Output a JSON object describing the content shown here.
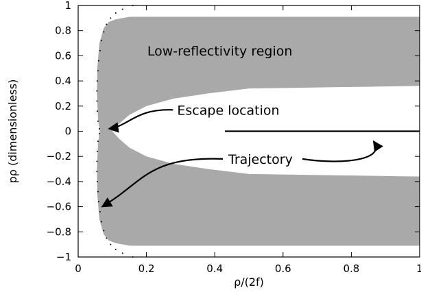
{
  "chart_data": {
    "type": "scatter",
    "title": "",
    "xlabel": "ρ/(2f)",
    "ylabel": "pρ (dimensionless)",
    "xlim": [
      0,
      1
    ],
    "ylim": [
      -1,
      1
    ],
    "x_ticks": [
      {
        "value": 0,
        "label": "0"
      },
      {
        "value": 0.2,
        "label": "0.2"
      },
      {
        "value": 0.4,
        "label": "0.4"
      },
      {
        "value": 0.6,
        "label": "0.6"
      },
      {
        "value": 0.8,
        "label": "0.8"
      },
      {
        "value": 1,
        "label": "1"
      }
    ],
    "y_ticks": [
      {
        "value": 1,
        "label": "1"
      },
      {
        "value": 0.8,
        "label": "0.8"
      },
      {
        "value": 0.6,
        "label": "0.6"
      },
      {
        "value": 0.4,
        "label": "0.4"
      },
      {
        "value": 0.2,
        "label": "0.2"
      },
      {
        "value": 0,
        "label": "0"
      },
      {
        "value": -0.2,
        "label": "−0.2"
      },
      {
        "value": -0.4,
        "label": "−0.4"
      },
      {
        "value": -0.6,
        "label": "−0.6"
      },
      {
        "value": -0.8,
        "label": "−0.8"
      },
      {
        "value": -1,
        "label": "−1"
      }
    ],
    "grid": false,
    "regions": {
      "fill_color": "#a9a9a9",
      "upper_band": {
        "outer": [
          [
            0.063,
            0.0
          ],
          [
            0.058,
            0.1
          ],
          [
            0.055,
            0.3
          ],
          [
            0.056,
            0.5
          ],
          [
            0.062,
            0.7
          ],
          [
            0.075,
            0.82
          ],
          [
            0.09,
            0.87
          ],
          [
            0.11,
            0.89
          ],
          [
            0.15,
            0.91
          ],
          [
            1.0,
            0.91
          ]
        ],
        "inner": [
          [
            0.1,
            0.0
          ],
          [
            0.12,
            0.06
          ],
          [
            0.15,
            0.13
          ],
          [
            0.2,
            0.2
          ],
          [
            0.28,
            0.26
          ],
          [
            0.38,
            0.3
          ],
          [
            0.5,
            0.34
          ],
          [
            1.0,
            0.36
          ]
        ]
      },
      "lower_band": {
        "outer": [
          [
            0.063,
            0.0
          ],
          [
            0.058,
            -0.1
          ],
          [
            0.055,
            -0.3
          ],
          [
            0.056,
            -0.5
          ],
          [
            0.062,
            -0.7
          ],
          [
            0.075,
            -0.82
          ],
          [
            0.09,
            -0.87
          ],
          [
            0.11,
            -0.89
          ],
          [
            0.15,
            -0.91
          ],
          [
            1.0,
            -0.91
          ]
        ],
        "inner": [
          [
            0.1,
            0.0
          ],
          [
            0.12,
            -0.06
          ],
          [
            0.15,
            -0.13
          ],
          [
            0.2,
            -0.2
          ],
          [
            0.28,
            -0.26
          ],
          [
            0.38,
            -0.3
          ],
          [
            0.5,
            -0.34
          ],
          [
            1.0,
            -0.36
          ]
        ]
      }
    },
    "trajectory": {
      "color": "#000000",
      "points": [
        [
          0.43,
          0.0
        ],
        [
          1.0,
          0.0
        ]
      ]
    },
    "boundary_dots": {
      "upper": [
        [
          0.16,
          1.0
        ],
        [
          0.13,
          0.97
        ],
        [
          0.11,
          0.94
        ],
        [
          0.095,
          0.9
        ],
        [
          0.083,
          0.85
        ],
        [
          0.075,
          0.79
        ],
        [
          0.068,
          0.72
        ],
        [
          0.064,
          0.64
        ],
        [
          0.06,
          0.56
        ],
        [
          0.058,
          0.48
        ],
        [
          0.056,
          0.4
        ],
        [
          0.055,
          0.32
        ],
        [
          0.055,
          0.24
        ],
        [
          0.056,
          0.16
        ],
        [
          0.058,
          0.08
        ],
        [
          0.062,
          0.02
        ]
      ],
      "lower": [
        [
          0.16,
          -1.0
        ],
        [
          0.13,
          -0.97
        ],
        [
          0.11,
          -0.94
        ],
        [
          0.095,
          -0.9
        ],
        [
          0.083,
          -0.85
        ],
        [
          0.075,
          -0.79
        ],
        [
          0.068,
          -0.72
        ],
        [
          0.064,
          -0.64
        ],
        [
          0.06,
          -0.56
        ],
        [
          0.058,
          -0.48
        ],
        [
          0.056,
          -0.4
        ],
        [
          0.055,
          -0.32
        ],
        [
          0.055,
          -0.24
        ],
        [
          0.056,
          -0.16
        ],
        [
          0.058,
          -0.08
        ],
        [
          0.062,
          -0.02
        ]
      ]
    },
    "annotations": [
      {
        "id": "low-reflectivity",
        "text": "Low-reflectivity region",
        "x": 0.415,
        "y": 0.64
      },
      {
        "id": "escape",
        "text": "Escape location",
        "x": 0.29,
        "y": 0.17,
        "arrow_to": [
          0.09,
          0.02
        ]
      },
      {
        "id": "trajectory",
        "text": "Trajectory",
        "x": 0.5,
        "y": -0.22,
        "arrow_to": [
          0.07,
          -0.6
        ]
      }
    ]
  }
}
